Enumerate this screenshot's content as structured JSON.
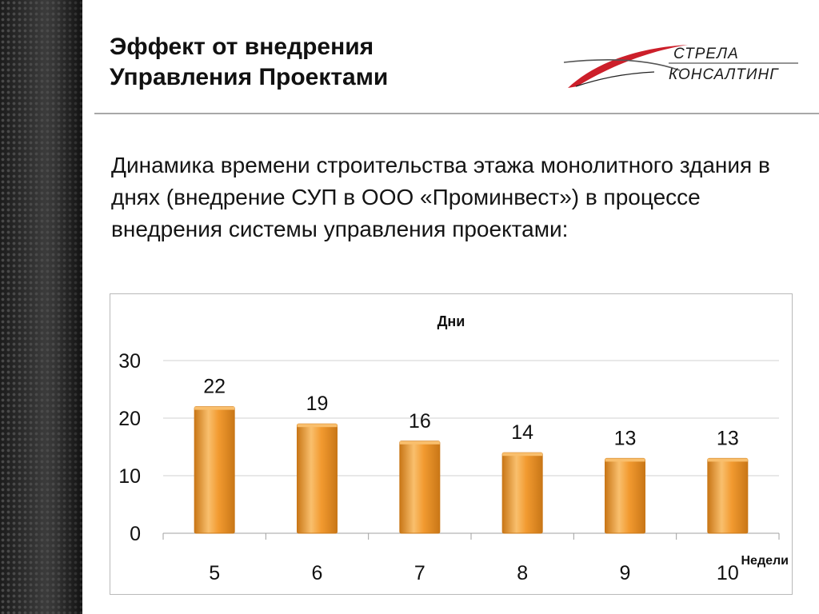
{
  "slide": {
    "title_line1": "Эффект от внедрения",
    "title_line2": "Управления Проектами",
    "description": "Динамика времени строительства этажа монолитного здания в днях (внедрение СУП в ООО «Проминвест») в процессе внедрения системы управления проектами:"
  },
  "logo": {
    "line1": "СТРЕЛА",
    "line2": "КОНСАЛТИНГ",
    "colors": {
      "swoosh_red": "#cc1f2a",
      "text": "#1a1a1a",
      "rule": "#555555"
    }
  },
  "colors": {
    "bar_fill": "#f29a30",
    "bar_highlight": "#f9bf6d",
    "bar_shadow": "#c97717",
    "gridline": "#d0d0d0",
    "axis": "#a0a0a0",
    "sidebar": "#2b2b2b"
  },
  "chart_data": {
    "type": "bar",
    "title": "Дни",
    "xlabel": "Недели",
    "ylabel": "",
    "categories": [
      "5",
      "6",
      "7",
      "8",
      "9",
      "10"
    ],
    "values": [
      22,
      19,
      16,
      14,
      13,
      13
    ],
    "data_labels": [
      "22",
      "19",
      "16",
      "14",
      "13",
      "13"
    ],
    "ylim": [
      0,
      30
    ],
    "yticks": [
      "0",
      "10",
      "20",
      "30"
    ],
    "grid": true,
    "legend": "none"
  }
}
